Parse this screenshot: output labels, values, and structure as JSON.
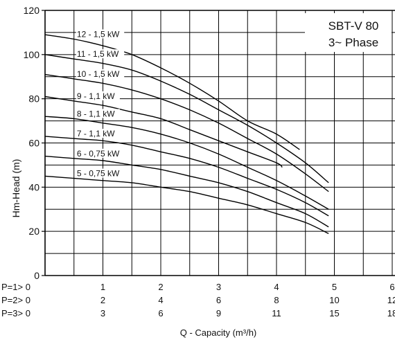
{
  "chart_data": {
    "type": "line",
    "title": "SBT-V 80",
    "subtitle": "3~ Phase",
    "xlabel": "Q - Capacity (m³/h)",
    "ylabel": "Hm-Head (m)",
    "xlim": [
      0,
      6
    ],
    "ylim": [
      0,
      120
    ],
    "grid": true,
    "y_ticks": [
      0,
      20,
      40,
      60,
      80,
      100,
      120
    ],
    "x_scales": [
      {
        "label": "P=1> 0",
        "ticks": [
          "1",
          "2",
          "3",
          "4",
          "5",
          "6"
        ]
      },
      {
        "label": "P=2> 0",
        "ticks": [
          "2",
          "4",
          "6",
          "8",
          "10",
          "12"
        ]
      },
      {
        "label": "P=3> 0",
        "ticks": [
          "3",
          "6",
          "9",
          "11",
          "15",
          "18"
        ]
      }
    ],
    "series": [
      {
        "name": "12 - 1,5 kW",
        "x": [
          0,
          0.5,
          1,
          1.5,
          2,
          2.5,
          3,
          3.5,
          4,
          4.4
        ],
        "y": [
          109,
          107,
          104,
          100,
          94,
          87,
          79,
          70,
          64,
          57
        ]
      },
      {
        "name": "11 - 1,5 kW",
        "x": [
          0,
          0.5,
          1,
          1.5,
          2,
          2.5,
          3,
          3.5,
          4,
          4.5,
          4.9
        ],
        "y": [
          100,
          98,
          96,
          93,
          88,
          82,
          75,
          68,
          60,
          51,
          42
        ]
      },
      {
        "name": "10 - 1,5 kW",
        "x": [
          0,
          0.5,
          1,
          1.5,
          2,
          2.5,
          3,
          3.5,
          4,
          4.5,
          4.9
        ],
        "y": [
          91,
          89,
          87,
          84,
          80,
          75,
          69,
          62,
          55,
          46,
          38
        ]
      },
      {
        "name": "9 - 1,1 kW",
        "x": [
          0,
          0.5,
          1,
          1.5,
          2,
          2.5,
          3,
          3.5,
          4,
          4.1
        ],
        "y": [
          81,
          79,
          77,
          74,
          71,
          66,
          61,
          56,
          51,
          49
        ]
      },
      {
        "name": "8 - 1,1 kW",
        "x": [
          0,
          0.5,
          1,
          1.5,
          2,
          2.5,
          3,
          3.5,
          4,
          4.5,
          4.9
        ],
        "y": [
          72,
          71,
          69,
          67,
          64,
          60,
          55,
          49,
          43,
          36,
          30
        ]
      },
      {
        "name": "7 - 1,1 kW",
        "x": [
          0,
          0.5,
          1,
          1.5,
          2,
          2.5,
          3,
          3.5,
          4,
          4.5,
          4.9
        ],
        "y": [
          63,
          62,
          61,
          59,
          56,
          53,
          49,
          44,
          39,
          33,
          27
        ]
      },
      {
        "name": "6 - 0,75 kW",
        "x": [
          0,
          0.5,
          1,
          1.5,
          2,
          2.5,
          3,
          3.5,
          4,
          4.5,
          4.9
        ],
        "y": [
          54,
          53,
          52,
          50,
          48,
          45,
          42,
          38,
          33,
          28,
          22
        ]
      },
      {
        "name": "5 - 0,75 kW",
        "x": [
          0,
          0.5,
          1,
          1.5,
          2,
          2.5,
          3,
          3.5,
          4,
          4.5,
          4.9
        ],
        "y": [
          45,
          44,
          43,
          42,
          40,
          38,
          35,
          32,
          28,
          24,
          19
        ]
      }
    ]
  }
}
